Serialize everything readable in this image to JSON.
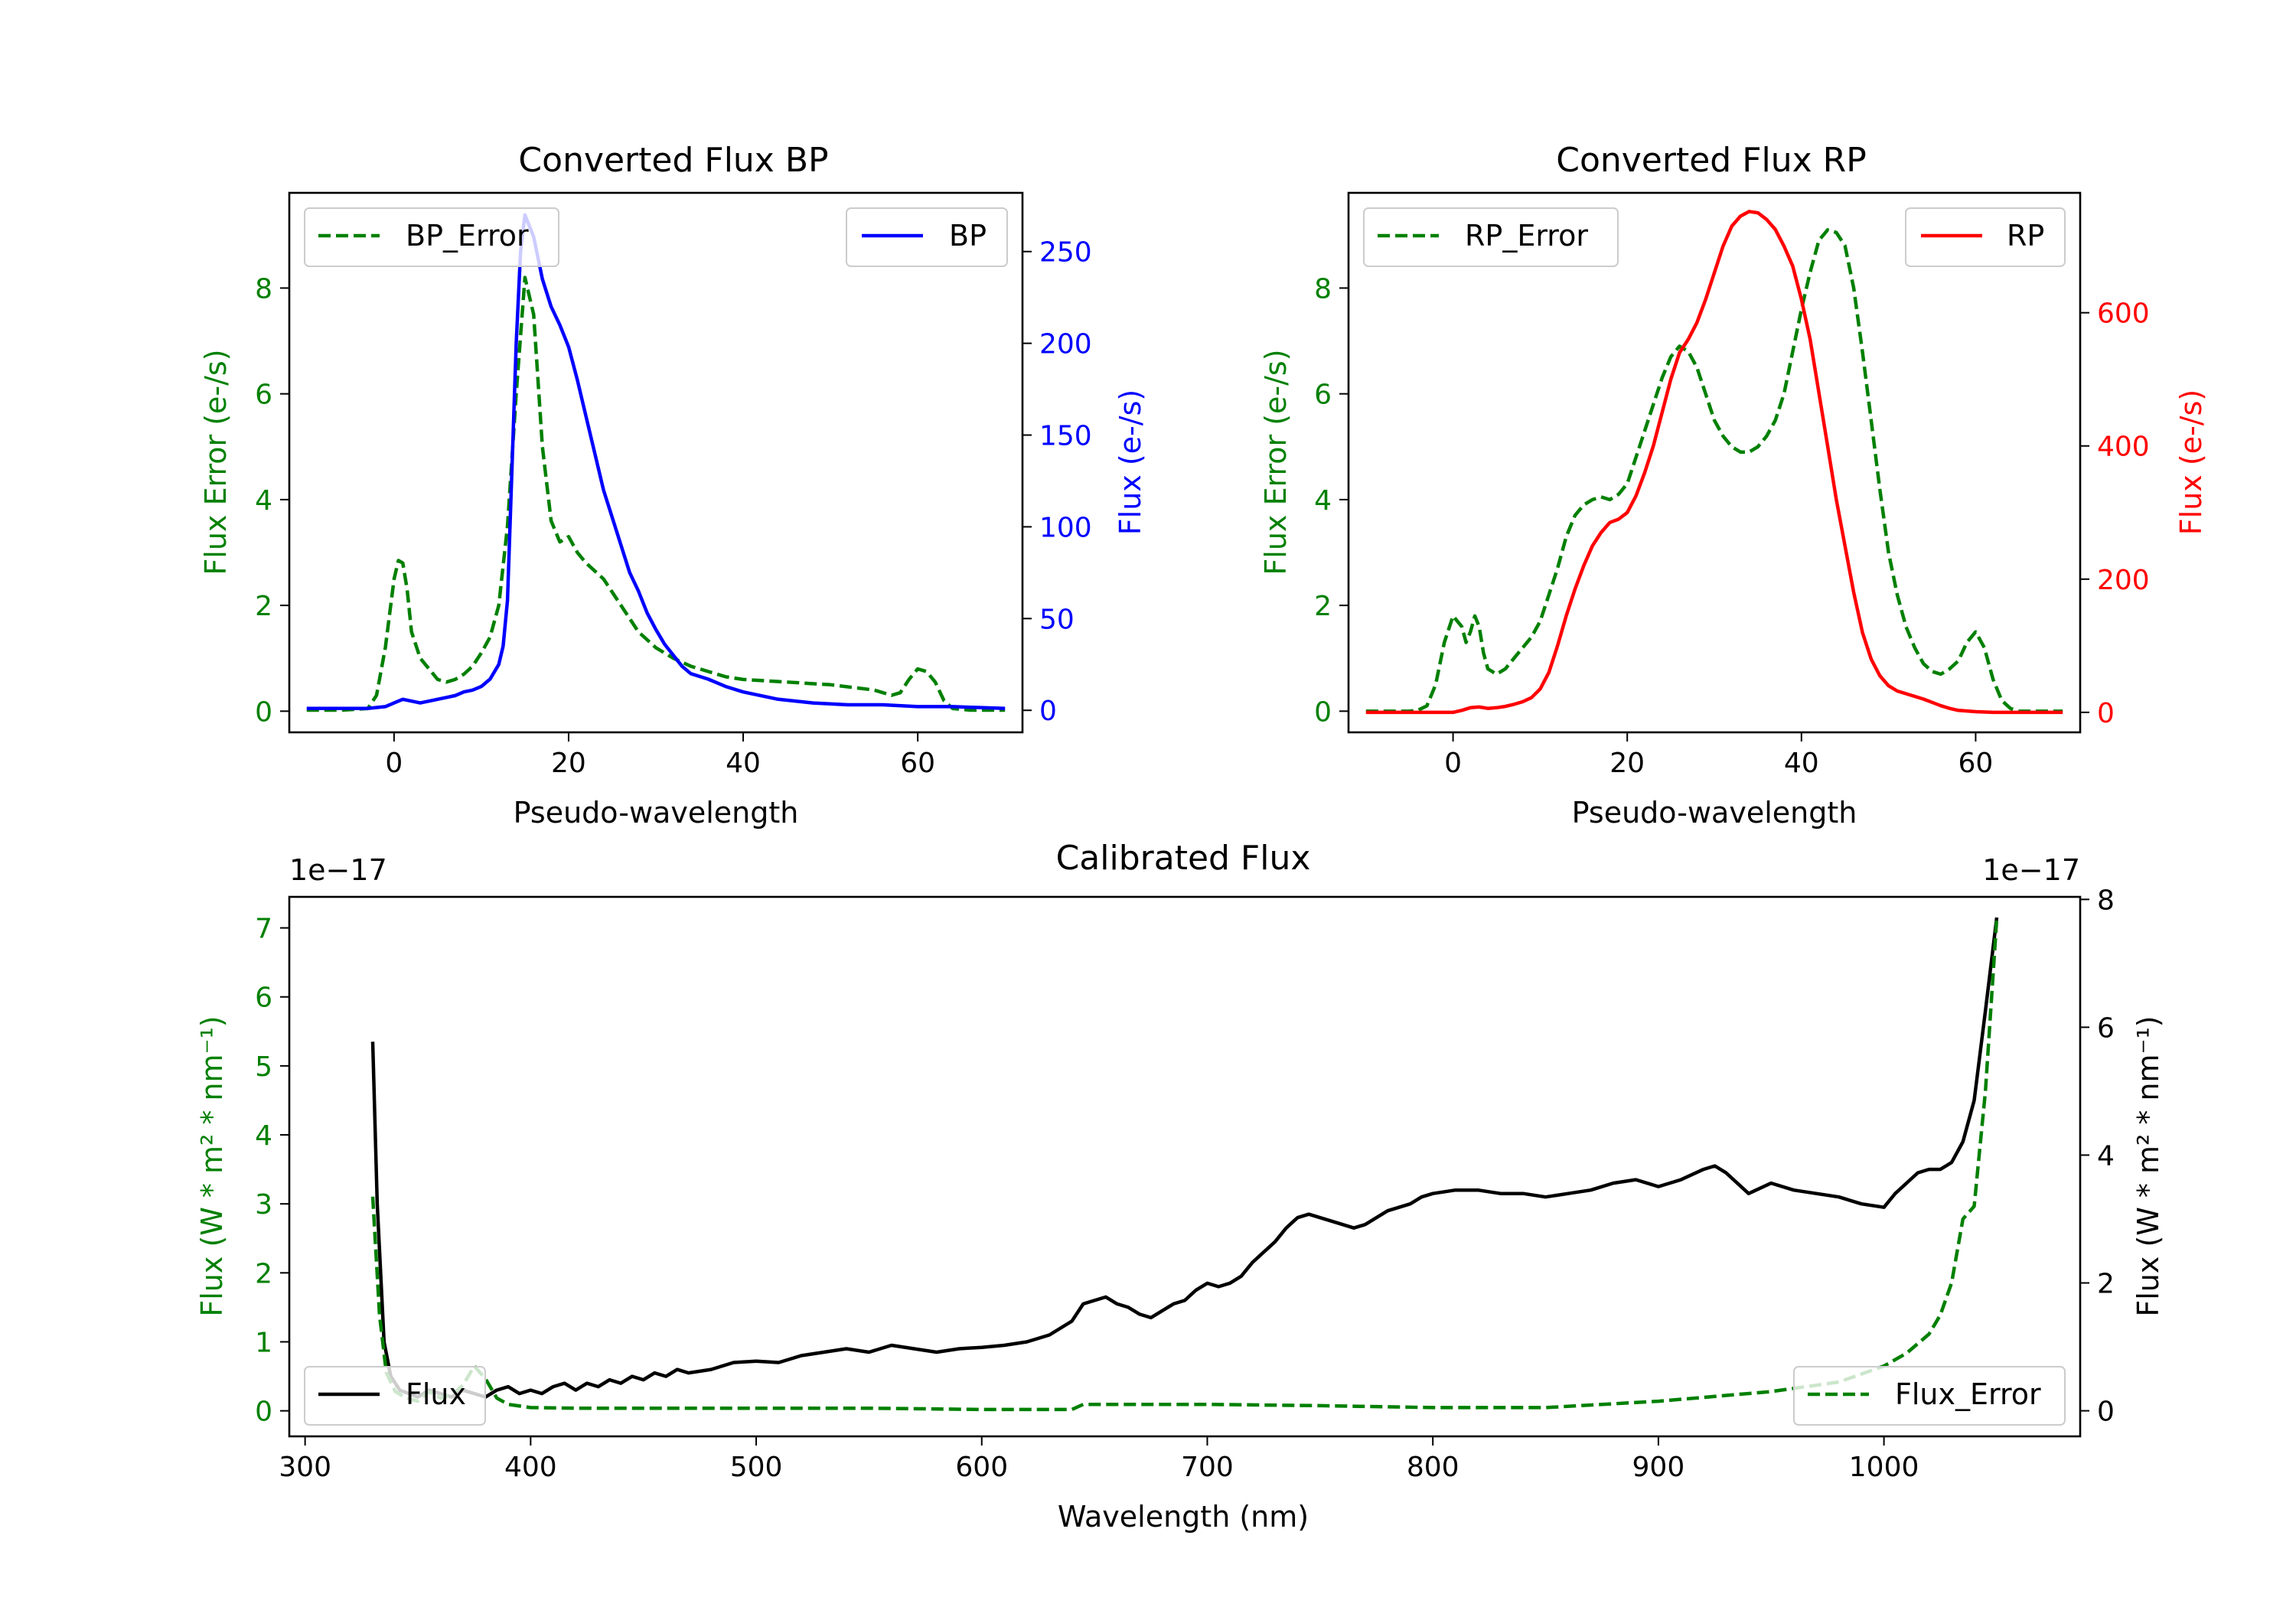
{
  "chart_data": [
    {
      "id": "bp",
      "type": "line",
      "title": "Converted Flux BP",
      "xlabel": "Pseudo-wavelength",
      "ylabel_left": "Flux Error (e-/s)",
      "ylabel_right": "Flux (e-/s)",
      "xlim": [
        -12,
        72
      ],
      "ylim_left": [
        -0.4,
        9.8
      ],
      "ylim_right": [
        -12,
        282
      ],
      "x_ticks": [
        0,
        20,
        40,
        60
      ],
      "y_ticks_left": [
        0,
        2,
        4,
        6,
        8
      ],
      "y_ticks_right": [
        0,
        50,
        100,
        150,
        200,
        250
      ],
      "legend_left": "top-left",
      "legend_right": "top-right",
      "series": [
        {
          "name": "BP_Error",
          "axis": "left",
          "color": "#008000",
          "dash": "dashed",
          "x": [
            -10,
            -6,
            -3,
            -2,
            -1,
            0,
            0.5,
            1,
            1.5,
            2,
            3,
            4,
            5,
            6,
            7,
            8,
            9,
            10,
            11,
            12,
            13,
            14,
            15,
            16,
            17,
            18,
            19,
            20,
            21,
            22,
            24,
            26,
            28,
            30,
            32,
            34,
            36,
            38,
            40,
            45,
            50,
            55,
            57,
            58,
            59,
            60,
            61,
            62,
            63,
            64,
            66,
            70
          ],
          "y": [
            0.02,
            0.02,
            0.05,
            0.3,
            1.2,
            2.5,
            2.85,
            2.8,
            2.3,
            1.5,
            1.0,
            0.8,
            0.6,
            0.55,
            0.6,
            0.7,
            0.85,
            1.1,
            1.4,
            2.0,
            3.5,
            6.0,
            8.2,
            7.5,
            5.0,
            3.6,
            3.2,
            3.3,
            3.0,
            2.8,
            2.5,
            2.0,
            1.5,
            1.2,
            1.0,
            0.85,
            0.75,
            0.65,
            0.6,
            0.55,
            0.5,
            0.4,
            0.3,
            0.35,
            0.6,
            0.8,
            0.75,
            0.55,
            0.2,
            0.05,
            0.02,
            0.02
          ]
        },
        {
          "name": "BP",
          "axis": "right",
          "color": "#0000ff",
          "dash": "solid",
          "x": [
            -10,
            -6,
            -3,
            -1,
            0,
            1,
            2,
            3,
            4,
            5,
            6,
            7,
            8,
            9,
            10,
            11,
            12,
            12.5,
            13,
            13.5,
            14,
            14.5,
            15,
            16,
            17,
            18,
            19,
            20,
            21,
            22,
            23,
            24,
            25,
            26,
            27,
            28,
            29,
            30,
            31,
            32,
            33,
            34,
            36,
            38,
            40,
            44,
            48,
            52,
            56,
            60,
            64,
            70
          ],
          "y": [
            1,
            1,
            1,
            2,
            4,
            6,
            5,
            4,
            5,
            6,
            7,
            8,
            10,
            11,
            13,
            17,
            25,
            35,
            60,
            130,
            200,
            250,
            270,
            258,
            235,
            220,
            210,
            198,
            180,
            160,
            140,
            120,
            105,
            90,
            75,
            65,
            53,
            44,
            36,
            30,
            24,
            20,
            17,
            13,
            10,
            6,
            4,
            3,
            3,
            2,
            2,
            1
          ]
        }
      ]
    },
    {
      "id": "rp",
      "type": "line",
      "title": "Converted Flux RP",
      "xlabel": "Pseudo-wavelength",
      "ylabel_left": "Flux Error (e-/s)",
      "ylabel_right": "Flux (e-/s)",
      "xlim": [
        -12,
        72
      ],
      "ylim_left": [
        -0.4,
        9.8
      ],
      "ylim_right": [
        -30,
        780
      ],
      "x_ticks": [
        0,
        20,
        40,
        60
      ],
      "y_ticks_left": [
        0,
        2,
        4,
        6,
        8
      ],
      "y_ticks_right": [
        0,
        200,
        400,
        600
      ],
      "legend_left": "top-left",
      "legend_right": "top-right",
      "series": [
        {
          "name": "RP_Error",
          "axis": "left",
          "color": "#008000",
          "dash": "dashed",
          "x": [
            -10,
            -5,
            -4,
            -3,
            -2,
            -1,
            0,
            1,
            1.5,
            2,
            2.5,
            3,
            3.5,
            4,
            5,
            6,
            7,
            8,
            9,
            10,
            11,
            12,
            13,
            14,
            15,
            16,
            17,
            18,
            19,
            20,
            21,
            22,
            23,
            24,
            25,
            26,
            27,
            28,
            29,
            30,
            31,
            32,
            33,
            34,
            35,
            36,
            37,
            38,
            39,
            40,
            41,
            42,
            43,
            44,
            45,
            46,
            47,
            48,
            49,
            50,
            51,
            52,
            53,
            54,
            55,
            56,
            57,
            58,
            59,
            60,
            61,
            62,
            63,
            64,
            65,
            70
          ],
          "y": [
            0,
            0,
            0.02,
            0.1,
            0.5,
            1.3,
            1.8,
            1.6,
            1.3,
            1.5,
            1.8,
            1.6,
            1.1,
            0.8,
            0.7,
            0.8,
            1.0,
            1.2,
            1.4,
            1.7,
            2.2,
            2.7,
            3.3,
            3.7,
            3.9,
            4.0,
            4.05,
            4.0,
            4.1,
            4.3,
            4.8,
            5.3,
            5.8,
            6.3,
            6.7,
            6.9,
            6.8,
            6.5,
            6.0,
            5.5,
            5.2,
            5.0,
            4.9,
            4.9,
            5.0,
            5.2,
            5.5,
            6.0,
            6.8,
            7.6,
            8.3,
            8.9,
            9.1,
            9.05,
            8.8,
            8.0,
            6.8,
            5.5,
            4.2,
            3.0,
            2.2,
            1.6,
            1.2,
            0.9,
            0.75,
            0.7,
            0.8,
            0.95,
            1.3,
            1.5,
            1.2,
            0.6,
            0.2,
            0.05,
            0,
            0
          ]
        },
        {
          "name": "RP",
          "axis": "right",
          "color": "#ff0000",
          "dash": "solid",
          "x": [
            -10,
            -5,
            -2,
            0,
            1,
            2,
            3,
            4,
            5,
            6,
            7,
            8,
            9,
            10,
            11,
            12,
            13,
            14,
            15,
            16,
            17,
            18,
            19,
            20,
            21,
            22,
            23,
            24,
            25,
            26,
            27,
            28,
            29,
            30,
            31,
            32,
            33,
            34,
            35,
            36,
            37,
            38,
            39,
            40,
            41,
            42,
            43,
            44,
            45,
            46,
            47,
            48,
            49,
            50,
            51,
            52,
            53,
            54,
            55,
            56,
            57,
            58,
            60,
            62,
            64,
            66,
            70
          ],
          "y": [
            0,
            0,
            0,
            0,
            3,
            7,
            8,
            6,
            7,
            9,
            12,
            16,
            22,
            35,
            60,
            100,
            145,
            185,
            220,
            250,
            270,
            285,
            290,
            300,
            325,
            360,
            400,
            450,
            500,
            540,
            560,
            585,
            620,
            660,
            700,
            730,
            745,
            752,
            750,
            740,
            725,
            700,
            670,
            620,
            560,
            480,
            400,
            320,
            250,
            180,
            120,
            80,
            55,
            40,
            32,
            28,
            24,
            20,
            15,
            10,
            6,
            3,
            1,
            0,
            0,
            0,
            0
          ]
        }
      ]
    },
    {
      "id": "calibrated",
      "type": "line",
      "title": "Calibrated Flux",
      "xlabel": "Wavelength (nm)",
      "ylabel_left": "Flux (W * m² * nm⁻¹)",
      "ylabel_right": "Flux (W * m² * nm⁻¹)",
      "offset_left": "1e−17",
      "offset_right": "1e−17",
      "xlim": [
        293,
        1087
      ],
      "ylim_left": [
        -0.37,
        7.45
      ],
      "ylim_right": [
        -0.4,
        8.04
      ],
      "x_ticks": [
        300,
        400,
        500,
        600,
        700,
        800,
        900,
        1000
      ],
      "y_ticks_left": [
        0,
        1,
        2,
        3,
        4,
        5,
        6,
        7
      ],
      "y_ticks_right": [
        0,
        2,
        4,
        6,
        8
      ],
      "legend_left": "lower-left",
      "legend_right": "lower-right",
      "series": [
        {
          "name": "Flux",
          "axis": "left",
          "color": "#000000",
          "dash": "solid",
          "x": [
            330,
            332,
            335,
            338,
            342,
            346,
            350,
            355,
            360,
            365,
            370,
            375,
            380,
            385,
            390,
            395,
            400,
            405,
            410,
            415,
            420,
            425,
            430,
            435,
            440,
            445,
            450,
            455,
            460,
            465,
            470,
            480,
            490,
            500,
            510,
            520,
            530,
            540,
            550,
            560,
            570,
            580,
            590,
            600,
            610,
            620,
            630,
            640,
            645,
            650,
            655,
            660,
            665,
            670,
            675,
            680,
            685,
            690,
            695,
            700,
            705,
            710,
            715,
            720,
            725,
            730,
            735,
            740,
            745,
            750,
            755,
            760,
            765,
            770,
            775,
            780,
            785,
            790,
            795,
            800,
            810,
            820,
            830,
            840,
            850,
            860,
            870,
            880,
            890,
            900,
            910,
            920,
            925,
            930,
            940,
            950,
            960,
            970,
            980,
            990,
            1000,
            1005,
            1010,
            1015,
            1020,
            1025,
            1030,
            1035,
            1040,
            1045,
            1050
          ],
          "y": [
            5.35,
            3.0,
            1.0,
            0.5,
            0.3,
            0.25,
            0.2,
            0.3,
            0.25,
            0.2,
            0.3,
            0.25,
            0.2,
            0.3,
            0.35,
            0.25,
            0.3,
            0.25,
            0.35,
            0.4,
            0.3,
            0.4,
            0.35,
            0.45,
            0.4,
            0.5,
            0.45,
            0.55,
            0.5,
            0.6,
            0.55,
            0.6,
            0.7,
            0.72,
            0.7,
            0.8,
            0.85,
            0.9,
            0.85,
            0.95,
            0.9,
            0.85,
            0.9,
            0.92,
            0.95,
            1.0,
            1.1,
            1.3,
            1.55,
            1.6,
            1.65,
            1.55,
            1.5,
            1.4,
            1.35,
            1.45,
            1.55,
            1.6,
            1.75,
            1.85,
            1.8,
            1.85,
            1.95,
            2.15,
            2.3,
            2.45,
            2.65,
            2.8,
            2.85,
            2.8,
            2.75,
            2.7,
            2.65,
            2.7,
            2.8,
            2.9,
            2.95,
            3.0,
            3.1,
            3.15,
            3.2,
            3.2,
            3.15,
            3.15,
            3.1,
            3.15,
            3.2,
            3.3,
            3.35,
            3.25,
            3.35,
            3.5,
            3.55,
            3.45,
            3.15,
            3.3,
            3.2,
            3.15,
            3.1,
            3.0,
            2.95,
            3.15,
            3.3,
            3.45,
            3.5,
            3.5,
            3.6,
            3.9,
            4.5,
            5.8,
            7.15
          ]
        },
        {
          "name": "Flux_Error",
          "axis": "right",
          "color": "#008000",
          "dash": "dashed",
          "x": [
            330,
            333,
            336,
            340,
            345,
            350,
            355,
            360,
            365,
            370,
            375,
            380,
            385,
            390,
            400,
            420,
            450,
            500,
            550,
            600,
            640,
            645,
            650,
            700,
            750,
            800,
            850,
            900,
            950,
            980,
            1000,
            1010,
            1020,
            1025,
            1030,
            1035,
            1040,
            1045,
            1050
          ],
          "y": [
            3.35,
            1.5,
            0.6,
            0.3,
            0.2,
            0.15,
            0.3,
            0.2,
            0.25,
            0.4,
            0.7,
            0.5,
            0.2,
            0.1,
            0.05,
            0.04,
            0.04,
            0.04,
            0.04,
            0.02,
            0.02,
            0.1,
            0.1,
            0.1,
            0.08,
            0.05,
            0.05,
            0.15,
            0.3,
            0.45,
            0.7,
            0.9,
            1.2,
            1.5,
            2.0,
            3.0,
            3.2,
            5.0,
            7.7
          ]
        }
      ]
    }
  ]
}
